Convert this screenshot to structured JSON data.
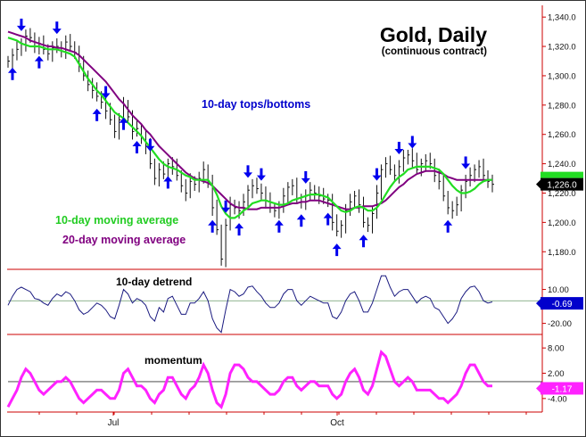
{
  "chart_data": {
    "type": "line",
    "title": "Gold, Daily",
    "subtitle": "(continuous contract)",
    "x_ticks": [
      "Jul",
      "Oct"
    ],
    "colors": {
      "price": "#111111",
      "ma10": "#22dd22",
      "ma20": "#800080",
      "arrow": "#0000ee",
      "detrend": "#1a1a80",
      "momentum": "#ff22ff",
      "axis": "#cc0000",
      "label_blue": "#0000cc",
      "label_green": "#22cc22",
      "label_purple": "#800080"
    },
    "price_panel": {
      "ylim": [
        1168,
        1348
      ],
      "y_ticks": [
        "1,340.0",
        "1,320.0",
        "1,300.0",
        "1,280.0",
        "1,260.0",
        "1,240.0",
        "1,220.0",
        "1,200.0",
        "1,180.0"
      ],
      "y_tick_values": [
        1340,
        1320,
        1300,
        1280,
        1260,
        1240,
        1220,
        1200,
        1180
      ],
      "last_value_label": "1,226.0",
      "last_value": 1226,
      "series": [
        {
          "name": "Gold",
          "values": [
            1310,
            1314,
            1318,
            1322,
            1327,
            1326,
            1320,
            1322,
            1318,
            1315,
            1319,
            1320,
            1317,
            1323,
            1320,
            1316,
            1308,
            1300,
            1294,
            1290,
            1286,
            1282,
            1276,
            1270,
            1262,
            1270,
            1280,
            1272,
            1262,
            1264,
            1258,
            1252,
            1240,
            1230,
            1236,
            1233,
            1240,
            1238,
            1232,
            1225,
            1220,
            1228,
            1226,
            1230,
            1236,
            1228,
            1210,
            1195,
            1175,
            1198,
            1212,
            1210,
            1208,
            1214,
            1222,
            1225,
            1223,
            1220,
            1215,
            1210,
            1208,
            1210,
            1218,
            1224,
            1225,
            1216,
            1214,
            1218,
            1222,
            1220,
            1218,
            1216,
            1215,
            1200,
            1194,
            1198,
            1208,
            1214,
            1218,
            1212,
            1200,
            1198,
            1206,
            1220,
            1236,
            1240,
            1236,
            1232,
            1238,
            1244,
            1246,
            1242,
            1236,
            1240,
            1242,
            1240,
            1232,
            1228,
            1218,
            1210,
            1208,
            1212,
            1222,
            1228,
            1232,
            1236,
            1238,
            1232,
            1228,
            1226
          ]
        },
        {
          "name": "10-day moving average",
          "values": [
            1326,
            1325,
            1324,
            1322,
            1321,
            1320,
            1320,
            1320,
            1319,
            1318,
            1318,
            1318,
            1317,
            1316,
            1315,
            1313,
            1308,
            1303,
            1298,
            1294,
            1290,
            1287,
            1283,
            1279,
            1275,
            1273,
            1271,
            1268,
            1265,
            1262,
            1259,
            1255,
            1251,
            1247,
            1243,
            1240,
            1238,
            1237,
            1236,
            1234,
            1232,
            1231,
            1229,
            1229,
            1229,
            1229,
            1225,
            1219,
            1211,
            1206,
            1203,
            1203,
            1205,
            1208,
            1210,
            1213,
            1214,
            1215,
            1215,
            1214,
            1213,
            1212,
            1212,
            1213,
            1215,
            1216,
            1217,
            1218,
            1219,
            1219,
            1219,
            1218,
            1217,
            1214,
            1211,
            1208,
            1207,
            1208,
            1210,
            1211,
            1210,
            1208,
            1208,
            1210,
            1214,
            1219,
            1224,
            1228,
            1231,
            1233,
            1236,
            1237,
            1238,
            1238,
            1238,
            1238,
            1237,
            1236,
            1233,
            1229,
            1225,
            1222,
            1220,
            1220,
            1221,
            1223,
            1226,
            1228,
            1229,
            1229
          ]
        },
        {
          "name": "20-day moving average",
          "values": [
            1330,
            1329,
            1328,
            1327,
            1326,
            1324,
            1323,
            1322,
            1321,
            1320,
            1320,
            1319,
            1319,
            1318,
            1317,
            1316,
            1314,
            1311,
            1308,
            1305,
            1302,
            1299,
            1296,
            1292,
            1288,
            1284,
            1281,
            1277,
            1273,
            1270,
            1267,
            1263,
            1260,
            1256,
            1252,
            1249,
            1246,
            1243,
            1240,
            1237,
            1234,
            1232,
            1230,
            1229,
            1228,
            1227,
            1225,
            1222,
            1219,
            1216,
            1213,
            1211,
            1210,
            1210,
            1209,
            1209,
            1209,
            1210,
            1210,
            1210,
            1210,
            1210,
            1211,
            1212,
            1213,
            1213,
            1214,
            1214,
            1215,
            1215,
            1215,
            1214,
            1213,
            1212,
            1211,
            1210,
            1209,
            1209,
            1210,
            1210,
            1211,
            1211,
            1211,
            1212,
            1213,
            1215,
            1218,
            1221,
            1224,
            1226,
            1229,
            1231,
            1233,
            1234,
            1235,
            1235,
            1235,
            1234,
            1233,
            1231,
            1230,
            1229,
            1229,
            1229,
            1229,
            1229,
            1229,
            1229,
            1229,
            1229
          ]
        }
      ],
      "arrow_legend": "10-day tops/bottoms",
      "ma10_label": "10-day moving average",
      "ma20_label": "20-day moving average",
      "tops_index": [
        3,
        11,
        22,
        32,
        49,
        54,
        57,
        67,
        83,
        88,
        91,
        103
      ],
      "bottoms_index": [
        1,
        7,
        20,
        26,
        29,
        36,
        46,
        52,
        61,
        66,
        72,
        74,
        80,
        99
      ]
    },
    "detrend_panel": {
      "label": "10-day detrend",
      "y_ticks": [
        "10.00",
        "-20.00"
      ],
      "y_tick_values": [
        10,
        -20
      ],
      "ylim": [
        -29,
        27
      ],
      "last_value_label": "-0.69",
      "values": [
        -4,
        4,
        10,
        12,
        10,
        8,
        2,
        1,
        -2,
        -4,
        2,
        6,
        4,
        8,
        6,
        0,
        -8,
        -12,
        -10,
        -6,
        -2,
        -4,
        -8,
        -14,
        -16,
        -4,
        10,
        6,
        -2,
        2,
        0,
        -4,
        -14,
        -18,
        -6,
        -10,
        2,
        4,
        -4,
        -12,
        -12,
        -2,
        -2,
        2,
        8,
        0,
        -16,
        -24,
        -28,
        -8,
        10,
        8,
        4,
        6,
        12,
        13,
        8,
        4,
        -2,
        -6,
        -6,
        -2,
        6,
        10,
        10,
        0,
        -4,
        0,
        4,
        2,
        0,
        -2,
        -2,
        -14,
        -16,
        -10,
        0,
        6,
        8,
        0,
        -10,
        -10,
        -2,
        10,
        22,
        22,
        12,
        4,
        8,
        10,
        10,
        4,
        -2,
        2,
        4,
        2,
        -6,
        -8,
        -14,
        -20,
        -16,
        -10,
        2,
        8,
        12,
        13,
        8,
        0,
        -2,
        -1
      ]
    },
    "momentum_panel": {
      "label": "momentum",
      "y_ticks": [
        "8.00",
        "2.00",
        "-4.00"
      ],
      "y_tick_values": [
        8,
        2,
        -4
      ],
      "ylim": [
        -7,
        11
      ],
      "last_value_label": "-1.17",
      "values": [
        -6,
        -4,
        -2,
        1,
        3,
        2,
        0,
        -2,
        -3,
        -2,
        -1,
        0,
        0,
        1,
        0,
        -2,
        -4,
        -5,
        -4,
        -3,
        -2,
        -2,
        -3,
        -4,
        -4,
        -2,
        2,
        3,
        1,
        -1,
        -1,
        -2,
        -4,
        -5,
        -3,
        -2,
        1,
        1,
        -1,
        -3,
        -4,
        -2,
        -1,
        1,
        4,
        2,
        -2,
        -5,
        -6,
        -3,
        2,
        4,
        4,
        3,
        1,
        0,
        0,
        -1,
        -2,
        -3,
        -3,
        -2,
        0,
        1,
        1,
        -1,
        -2,
        -1,
        0,
        0,
        -1,
        -1,
        -1,
        -3,
        -4,
        -3,
        0,
        2,
        3,
        1,
        -2,
        -3,
        -1,
        3,
        7,
        6,
        3,
        0,
        -1,
        0,
        1,
        0,
        -2,
        -2,
        -2,
        -2,
        -3,
        -4,
        -4,
        -5,
        -4,
        -3,
        -1,
        2,
        4,
        4,
        2,
        0,
        -1,
        -1
      ]
    }
  }
}
